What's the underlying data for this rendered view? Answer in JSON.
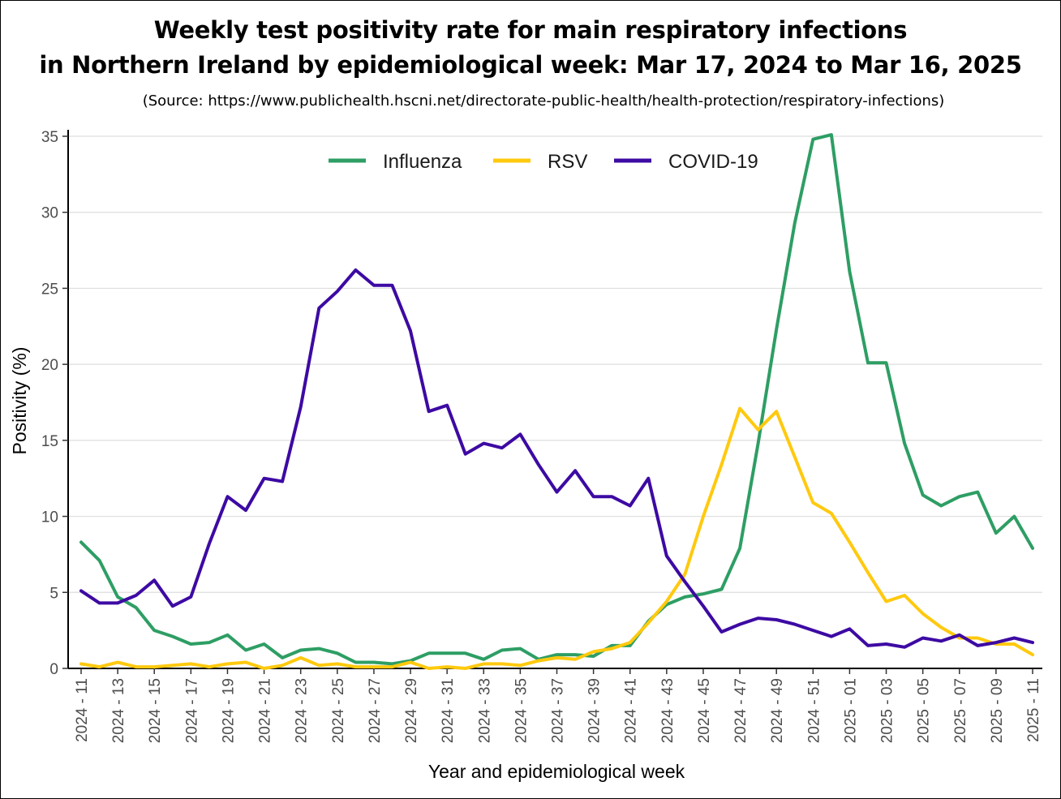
{
  "title_line1": "Weekly test positivity rate for main respiratory infections",
  "title_line2": "in Northern Ireland by epidemiological week: Mar 17, 2024 to Mar 16, 2025",
  "source": "(Source: https://www.publichealth.hscni.net/directorate-public-health/health-protection/respiratory-infections)",
  "chart_data": {
    "type": "line",
    "xlabel": "Year and epidemiological week",
    "ylabel": "Positivity (%)",
    "ylim": [
      0,
      35
    ],
    "yticks": [
      0,
      5,
      10,
      15,
      20,
      25,
      30,
      35
    ],
    "grid": "horizontal",
    "legend_position": "top",
    "x": [
      "2024 - 11",
      "2024 - 12",
      "2024 - 13",
      "2024 - 14",
      "2024 - 15",
      "2024 - 16",
      "2024 - 17",
      "2024 - 18",
      "2024 - 19",
      "2024 - 20",
      "2024 - 21",
      "2024 - 22",
      "2024 - 23",
      "2024 - 24",
      "2024 - 25",
      "2024 - 26",
      "2024 - 27",
      "2024 - 28",
      "2024 - 29",
      "2024 - 30",
      "2024 - 31",
      "2024 - 32",
      "2024 - 33",
      "2024 - 34",
      "2024 - 35",
      "2024 - 36",
      "2024 - 37",
      "2024 - 38",
      "2024 - 39",
      "2024 - 40",
      "2024 - 41",
      "2024 - 42",
      "2024 - 43",
      "2024 - 44",
      "2024 - 45",
      "2024 - 46",
      "2024 - 47",
      "2024 - 48",
      "2024 - 49",
      "2024 - 50",
      "2024 - 51",
      "2024 - 52",
      "2025 - 01",
      "2025 - 02",
      "2025 - 03",
      "2025 - 04",
      "2025 - 05",
      "2025 - 06",
      "2025 - 07",
      "2025 - 08",
      "2025 - 09",
      "2025 - 10",
      "2025 - 11"
    ],
    "xtick_labels": [
      "2024 - 11",
      "2024 - 13",
      "2024 - 15",
      "2024 - 17",
      "2024 - 19",
      "2024 - 21",
      "2024 - 23",
      "2024 - 25",
      "2024 - 27",
      "2024 - 29",
      "2024 - 31",
      "2024 - 33",
      "2024 - 35",
      "2024 - 37",
      "2024 - 39",
      "2024 - 41",
      "2024 - 43",
      "2024 - 45",
      "2024 - 47",
      "2024 - 49",
      "2024 - 51",
      "2025 - 01",
      "2025 - 03",
      "2025 - 05",
      "2025 - 07",
      "2025 - 09",
      "2025 - 11"
    ],
    "series": [
      {
        "name": "Influenza",
        "color": "#2e9e64",
        "values": [
          8.3,
          7.1,
          4.7,
          4.0,
          2.5,
          2.1,
          1.6,
          1.7,
          2.2,
          1.2,
          1.6,
          0.7,
          1.2,
          1.3,
          1.0,
          0.4,
          0.4,
          0.3,
          0.5,
          1.0,
          1.0,
          1.0,
          0.6,
          1.2,
          1.3,
          0.6,
          0.9,
          0.9,
          0.8,
          1.5,
          1.5,
          3.1,
          4.2,
          4.7,
          4.9,
          5.2,
          7.9,
          14.8,
          22.3,
          29.3,
          34.8,
          35.1,
          26.1,
          20.1,
          20.1,
          14.8,
          11.4,
          10.7,
          11.3,
          11.6,
          8.9,
          10.0,
          7.9
        ]
      },
      {
        "name": "RSV",
        "color": "#ffc90e",
        "values": [
          0.3,
          0.1,
          0.4,
          0.1,
          0.1,
          0.2,
          0.3,
          0.1,
          0.3,
          0.4,
          0.0,
          0.2,
          0.7,
          0.2,
          0.3,
          0.1,
          0.1,
          0.1,
          0.4,
          0.0,
          0.1,
          0.0,
          0.3,
          0.3,
          0.2,
          0.5,
          0.7,
          0.6,
          1.1,
          1.3,
          1.7,
          3.0,
          4.4,
          6.2,
          10.0,
          13.4,
          17.1,
          15.7,
          16.9,
          13.9,
          10.9,
          10.2,
          8.3,
          6.3,
          4.4,
          4.8,
          3.6,
          2.7,
          2.0,
          2.0,
          1.6,
          1.6,
          0.9
        ]
      },
      {
        "name": "COVID-19",
        "color": "#3d0aa3",
        "values": [
          5.1,
          4.3,
          4.3,
          4.8,
          5.8,
          4.1,
          4.7,
          8.2,
          11.3,
          10.4,
          12.5,
          12.3,
          17.2,
          23.7,
          24.8,
          26.2,
          25.2,
          25.2,
          22.2,
          16.9,
          17.3,
          14.1,
          14.8,
          14.5,
          15.4,
          13.4,
          11.6,
          13.0,
          11.3,
          11.3,
          10.7,
          12.5,
          7.4,
          5.7,
          4.1,
          2.4,
          2.9,
          3.3,
          3.2,
          2.9,
          2.5,
          2.1,
          2.6,
          1.5,
          1.6,
          1.4,
          2.0,
          1.8,
          2.2,
          1.5,
          1.7,
          2.0,
          1.7
        ]
      }
    ]
  }
}
